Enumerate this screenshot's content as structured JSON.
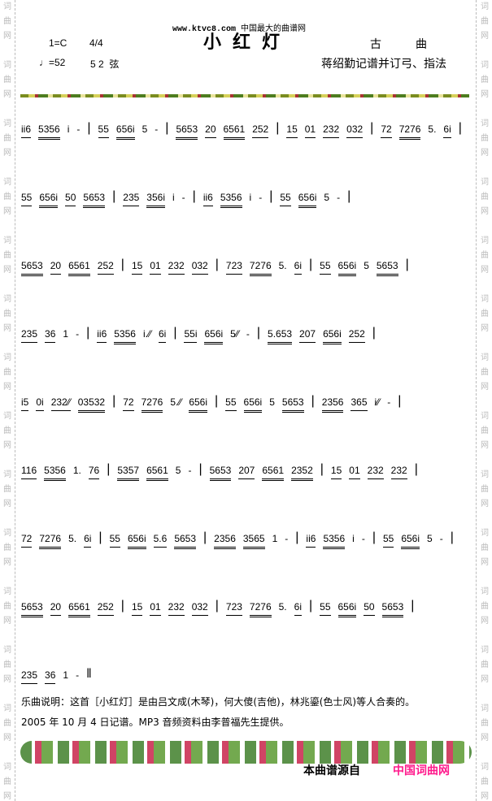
{
  "watermark": "词曲网",
  "header": {
    "site": "www.ktvc8.com",
    "site_desc": "中国最大的曲谱网",
    "title": "小红灯",
    "key": "1=C",
    "time": "4/4",
    "tempo": "♩=52",
    "strings": "5 2  弦",
    "genre": "古　　　曲",
    "notation_by": "蒋绍勤记谱并订弓、指法"
  },
  "score": [
    [
      "ii6",
      "5356",
      "i",
      "-",
      "|",
      "55",
      "656i",
      "5",
      "-",
      "|",
      "5653",
      "20",
      "6561",
      "252",
      "|",
      "15",
      "01",
      "232",
      "032",
      "|",
      "72",
      "7276",
      "5.",
      "6i",
      "|"
    ],
    [
      "55",
      "656i",
      "50",
      "5653",
      "|",
      "235",
      "356i",
      "i",
      "-",
      "|",
      "ii6",
      "5356",
      "i",
      "-",
      "|",
      "55",
      "656i",
      "5",
      "-",
      "|"
    ],
    [
      "5653",
      "20",
      "6561",
      "252",
      "|",
      "15",
      "01",
      "232",
      "032",
      "|",
      "723",
      "7276",
      "5.",
      "6i",
      "|",
      "55",
      "656i",
      "5",
      "5653",
      "|"
    ],
    [
      "235",
      "36",
      "1",
      "-",
      "|",
      "ii6",
      "5356",
      "i.⁄⁄",
      "6i",
      "|",
      "55i",
      "656i",
      "5⁄⁄",
      "-",
      "|",
      "5.653",
      "207",
      "656i",
      "252",
      "|"
    ],
    [
      "i5",
      "0i",
      "232⁄⁄",
      "03532",
      "|",
      "72",
      "7276",
      "5.⁄⁄",
      "656i",
      "|",
      "55",
      "656i",
      "5",
      "5653",
      "|",
      "2356",
      "365",
      "i⁄⁄",
      "-",
      "|"
    ],
    [
      "116",
      "5356",
      "1.",
      "76",
      "|",
      "5357",
      "6561",
      "5",
      "-",
      "|",
      "5653",
      "207",
      "6561",
      "2352",
      "|",
      "15",
      "01",
      "232",
      "232",
      "|"
    ],
    [
      "72",
      "7276",
      "5.",
      "6i",
      "|",
      "55",
      "656i",
      "5.6",
      "5653",
      "|",
      "2356",
      "3565",
      "1",
      "-",
      "|",
      "ii6",
      "5356",
      "i",
      "-",
      "|",
      "55",
      "656i",
      "5",
      "-",
      "|"
    ],
    [
      "5653",
      "20",
      "6561",
      "252",
      "|",
      "15",
      "01",
      "232",
      "032",
      "|",
      "723",
      "7276",
      "5.",
      "6i",
      "|",
      "55",
      "656i",
      "50",
      "5653",
      "|"
    ],
    [
      "235",
      "36",
      "1",
      "-",
      "‖"
    ]
  ],
  "description": {
    "line1": "乐曲说明：这首［小红灯］是由吕文成(木琴)，何大傻(吉他)，林兆鎏(色士风)等人合奏的。",
    "line2": "2005 年 10 月 4 日记谱。MP3 音频资料由李普福先生提供。"
  },
  "footer": {
    "source_label": "本曲谱源自",
    "source_site": "中国词曲网",
    "source_color": "#ff1a8c"
  }
}
